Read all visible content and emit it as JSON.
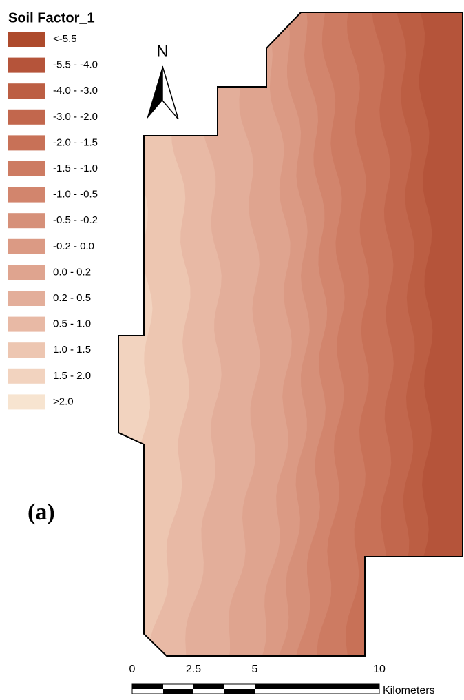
{
  "legend": {
    "title": "Soil Factor_1",
    "items": [
      {
        "label": "<-5.5",
        "color": "#ad4a2c"
      },
      {
        "label": "-5.5 - -4.0",
        "color": "#b5543a"
      },
      {
        "label": "-4.0 - -3.0",
        "color": "#bc5e43"
      },
      {
        "label": "-3.0 - -2.0",
        "color": "#c2674d"
      },
      {
        "label": "-2.0 - -1.5",
        "color": "#c87157"
      },
      {
        "label": "-1.5 - -1.0",
        "color": "#cd7b62"
      },
      {
        "label": "-1.0 - -0.5",
        "color": "#d2856d"
      },
      {
        "label": "-0.5 - -0.2",
        "color": "#d69079"
      },
      {
        "label": "-0.2 - 0.0",
        "color": "#db9a84"
      },
      {
        "label": "0.0 - 0.2",
        "color": "#dfa48f"
      },
      {
        "label": "0.2 - 0.5",
        "color": "#e3ae9a"
      },
      {
        "label": "0.5 - 1.0",
        "color": "#e8b9a5"
      },
      {
        "label": "1.0 - 1.5",
        "color": "#edc6b1"
      },
      {
        "label": "1.5 - 2.0",
        "color": "#f2d3bf"
      },
      {
        "label": ">2.0",
        "color": "#f7e4d0"
      }
    ]
  },
  "north_label": "N",
  "panel_label": "(a)",
  "scale_bar": {
    "ticks": [
      "0",
      "2.5",
      "5",
      "10"
    ],
    "unit": "Kilometers"
  }
}
